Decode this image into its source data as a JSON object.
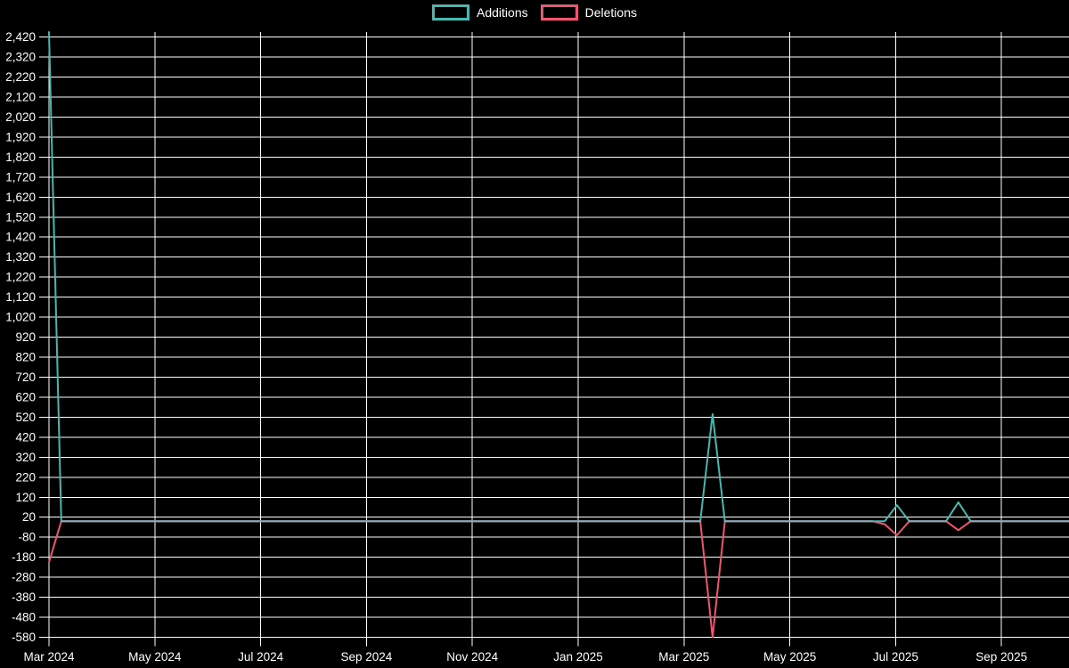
{
  "chart_data": {
    "type": "line",
    "title": "",
    "legend_position": "top-center",
    "background": "#000000",
    "grid": true,
    "grid_color": "#ffffff",
    "text_color": "#ffffff",
    "overlap_line_color": "#8fa6b3",
    "x_tick_labels": [
      "Mar 2024",
      "May 2024",
      "Jul 2024",
      "Sep 2024",
      "Nov 2024",
      "Jan 2025",
      "Mar 2025",
      "May 2025",
      "Jul 2025",
      "Sep 2025"
    ],
    "y_tick_labels": [
      "2,420",
      "2,320",
      "2,220",
      "2,120",
      "2,020",
      "1,920",
      "1,820",
      "1,720",
      "1,620",
      "1,520",
      "1,420",
      "1,320",
      "1,220",
      "1,120",
      "1,020",
      "920",
      "820",
      "720",
      "620",
      "520",
      "420",
      "320",
      "220",
      "120",
      "20",
      "-80",
      "-180",
      "-280",
      "-380",
      "-480",
      "-580"
    ],
    "y_axis": {
      "min": -580,
      "max": 2445,
      "tick_step": 100
    },
    "x_axis": {
      "unit": "week",
      "point_count": 84
    },
    "series": [
      {
        "name": "Additions",
        "color": "#46b8b0",
        "default_value": 0,
        "points_nonzero": [
          {
            "week": 0,
            "value": 2445
          },
          {
            "week": 54,
            "value": 535
          },
          {
            "week": 69,
            "value": 80
          },
          {
            "week": 74,
            "value": 95
          }
        ]
      },
      {
        "name": "Deletions",
        "color": "#ef5570",
        "default_value": 0,
        "points_nonzero": [
          {
            "week": 0,
            "value": -205
          },
          {
            "week": 54,
            "value": -580
          },
          {
            "week": 68,
            "value": -15
          },
          {
            "week": 69,
            "value": -70
          },
          {
            "week": 74,
            "value": -45
          }
        ]
      }
    ]
  }
}
